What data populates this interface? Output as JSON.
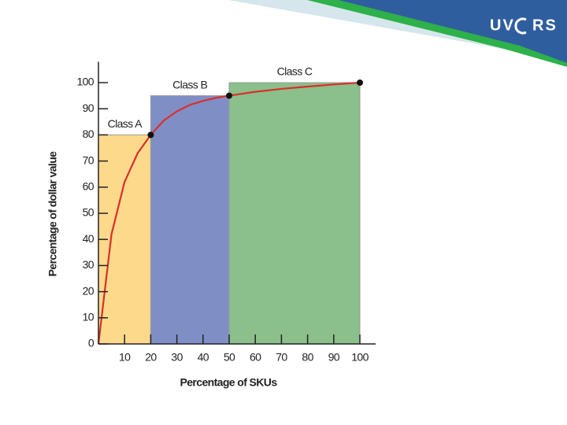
{
  "logo": {
    "left": "UV",
    "right": "RS"
  },
  "chart_data": {
    "type": "line",
    "x_label": "Percentage of SKUs",
    "y_label": "Percentage of dollar value",
    "x": [
      0,
      5,
      10,
      15,
      20,
      25,
      30,
      35,
      40,
      45,
      50,
      60,
      70,
      80,
      90,
      100
    ],
    "values": [
      0,
      42,
      62,
      73,
      80,
      85.5,
      89,
      91.5,
      93,
      94.2,
      95,
      96.5,
      97.6,
      98.5,
      99.3,
      100
    ],
    "color": "#d8302b",
    "points": {
      "x": [
        20,
        50,
        100
      ],
      "values": [
        80,
        95,
        100
      ],
      "color": "#111111"
    },
    "regions": [
      {
        "label": "Class A",
        "from": 0,
        "to": 20,
        "value": 80,
        "color": "#fdd98c"
      },
      {
        "label": "Class B",
        "from": 20,
        "to": 50,
        "value": 95,
        "color": "#7f8fc6"
      },
      {
        "label": "Class C",
        "from": 50,
        "to": 100,
        "value": 100,
        "color": "#8bbf8b"
      }
    ],
    "xlim": [
      0,
      106
    ],
    "ylim": [
      0,
      108
    ],
    "xticks": [
      10,
      20,
      30,
      40,
      50,
      60,
      70,
      80,
      90,
      100
    ],
    "yticks": [
      0,
      10,
      20,
      30,
      40,
      50,
      60,
      70,
      80,
      90,
      100
    ]
  }
}
